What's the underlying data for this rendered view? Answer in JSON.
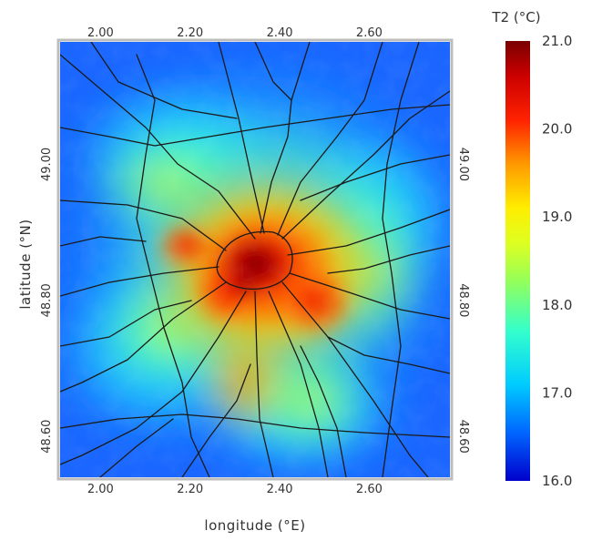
{
  "chart_data": {
    "type": "heatmap",
    "title": "",
    "xlabel": "longitude (°E)",
    "ylabel": "latitude (°N)",
    "x_ticks": [
      "2.00",
      "2.20",
      "2.40",
      "2.60"
    ],
    "x_tick_values": [
      2.0,
      2.2,
      2.4,
      2.6
    ],
    "y_ticks": [
      "48.60",
      "48.80",
      "49.00"
    ],
    "y_tick_values": [
      48.6,
      48.8,
      49.0
    ],
    "xlim": [
      1.91,
      2.78
    ],
    "ylim": [
      48.54,
      49.18
    ],
    "colorbar": {
      "label": "T2 (°C)",
      "ticks": [
        "21.0",
        "20.0",
        "19.0",
        "18.0",
        "17.0",
        "16.0"
      ],
      "tick_values": [
        21.0,
        20.0,
        19.0,
        18.0,
        17.0,
        16.0
      ],
      "range": [
        16.0,
        21.0
      ],
      "colormap": [
        "#0000cc",
        "#0066ff",
        "#00ccff",
        "#33ffcc",
        "#ccff33",
        "#ffee00",
        "#ff9900",
        "#ff2200",
        "#cc0000",
        "#7a0000"
      ]
    },
    "temperature_hotspots": [
      {
        "lon": 2.34,
        "lat": 48.855,
        "t2": 21.0
      },
      {
        "lon": 2.3,
        "lat": 48.82,
        "t2": 20.5
      },
      {
        "lon": 2.42,
        "lat": 48.86,
        "t2": 20.3
      },
      {
        "lon": 2.24,
        "lat": 48.89,
        "t2": 19.9
      },
      {
        "lon": 2.42,
        "lat": 48.78,
        "t2": 19.8
      },
      {
        "lon": 2.28,
        "lat": 48.72,
        "t2": 19.2
      },
      {
        "lon": 2.5,
        "lat": 48.82,
        "t2": 19.3
      },
      {
        "lon": 2.2,
        "lat": 48.97,
        "t2": 18.0
      },
      {
        "lon": 2.6,
        "lat": 48.88,
        "t2": 17.7
      },
      {
        "lon": 2.55,
        "lat": 49.05,
        "t2": 17.3
      },
      {
        "lon": 2.0,
        "lat": 48.75,
        "t2": 17.4
      },
      {
        "lon": 2.1,
        "lat": 49.12,
        "t2": 16.4
      },
      {
        "lon": 2.7,
        "lat": 49.12,
        "t2": 16.2
      },
      {
        "lon": 2.75,
        "lat": 48.6,
        "t2": 16.8
      },
      {
        "lon": 1.95,
        "lat": 48.58,
        "t2": 16.9
      }
    ],
    "background_t2": 16.6
  }
}
